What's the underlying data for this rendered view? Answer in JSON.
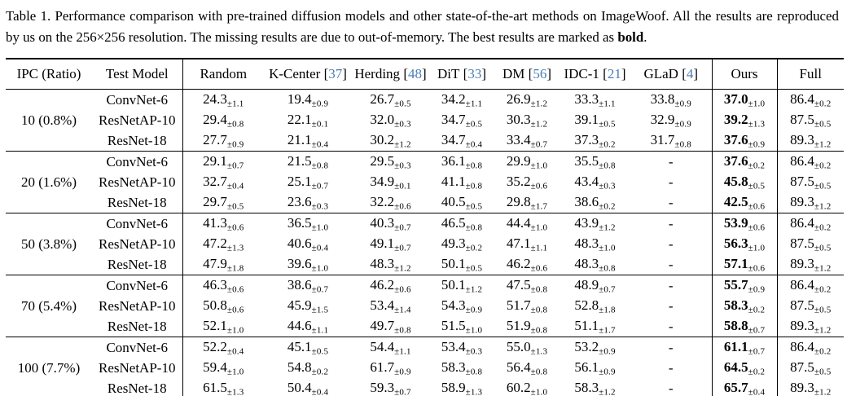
{
  "caption": {
    "text": "Table 1. Performance comparison with pre-trained diffusion models and other state-of-the-art methods on ImageWoof. All the results are reproduced by us on the 256×256 resolution. The missing results are due to out-of-memory. The best results are marked as ",
    "bold_word": "bold",
    "suffix": "."
  },
  "colors": {
    "citation_blue": "#4a7db6",
    "text": "#000000",
    "background": "#ffffff"
  },
  "table": {
    "columns": [
      {
        "label": "IPC (Ratio)"
      },
      {
        "label": "Test Model"
      },
      {
        "label": "Random"
      },
      {
        "label": "K-Center",
        "cite": "37"
      },
      {
        "label": "Herding",
        "cite": "48"
      },
      {
        "label": "DiT",
        "cite": "33"
      },
      {
        "label": "DM",
        "cite": "56"
      },
      {
        "label": "IDC-1",
        "cite": "21"
      },
      {
        "label": "GLaD",
        "cite": "4"
      },
      {
        "label": "Ours",
        "bold_values": true
      },
      {
        "label": "Full"
      }
    ],
    "groups": [
      {
        "ipc": "10 (0.8%)",
        "rows": [
          {
            "model": "ConvNet-6",
            "cells": [
              [
                "24.3",
                "1.1"
              ],
              [
                "19.4",
                "0.9"
              ],
              [
                "26.7",
                "0.5"
              ],
              [
                "34.2",
                "1.1"
              ],
              [
                "26.9",
                "1.2"
              ],
              [
                "33.3",
                "1.1"
              ],
              [
                "33.8",
                "0.9"
              ],
              [
                "37.0",
                "1.0"
              ],
              [
                "86.4",
                "0.2"
              ]
            ]
          },
          {
            "model": "ResNetAP-10",
            "cells": [
              [
                "29.4",
                "0.8"
              ],
              [
                "22.1",
                "0.1"
              ],
              [
                "32.0",
                "0.3"
              ],
              [
                "34.7",
                "0.5"
              ],
              [
                "30.3",
                "1.2"
              ],
              [
                "39.1",
                "0.5"
              ],
              [
                "32.9",
                "0.9"
              ],
              [
                "39.2",
                "1.3"
              ],
              [
                "87.5",
                "0.5"
              ]
            ]
          },
          {
            "model": "ResNet-18",
            "cells": [
              [
                "27.7",
                "0.9"
              ],
              [
                "21.1",
                "0.4"
              ],
              [
                "30.2",
                "1.2"
              ],
              [
                "34.7",
                "0.4"
              ],
              [
                "33.4",
                "0.7"
              ],
              [
                "37.3",
                "0.2"
              ],
              [
                "31.7",
                "0.8"
              ],
              [
                "37.6",
                "0.9"
              ],
              [
                "89.3",
                "1.2"
              ]
            ]
          }
        ]
      },
      {
        "ipc": "20 (1.6%)",
        "rows": [
          {
            "model": "ConvNet-6",
            "cells": [
              [
                "29.1",
                "0.7"
              ],
              [
                "21.5",
                "0.8"
              ],
              [
                "29.5",
                "0.3"
              ],
              [
                "36.1",
                "0.8"
              ],
              [
                "29.9",
                "1.0"
              ],
              [
                "35.5",
                "0.8"
              ],
              "-",
              [
                "37.6",
                "0.2"
              ],
              [
                "86.4",
                "0.2"
              ]
            ]
          },
          {
            "model": "ResNetAP-10",
            "cells": [
              [
                "32.7",
                "0.4"
              ],
              [
                "25.1",
                "0.7"
              ],
              [
                "34.9",
                "0.1"
              ],
              [
                "41.1",
                "0.8"
              ],
              [
                "35.2",
                "0.6"
              ],
              [
                "43.4",
                "0.3"
              ],
              "-",
              [
                "45.8",
                "0.5"
              ],
              [
                "87.5",
                "0.5"
              ]
            ]
          },
          {
            "model": "ResNet-18",
            "cells": [
              [
                "29.7",
                "0.5"
              ],
              [
                "23.6",
                "0.3"
              ],
              [
                "32.2",
                "0.6"
              ],
              [
                "40.5",
                "0.5"
              ],
              [
                "29.8",
                "1.7"
              ],
              [
                "38.6",
                "0.2"
              ],
              "-",
              [
                "42.5",
                "0.6"
              ],
              [
                "89.3",
                "1.2"
              ]
            ]
          }
        ]
      },
      {
        "ipc": "50 (3.8%)",
        "rows": [
          {
            "model": "ConvNet-6",
            "cells": [
              [
                "41.3",
                "0.6"
              ],
              [
                "36.5",
                "1.0"
              ],
              [
                "40.3",
                "0.7"
              ],
              [
                "46.5",
                "0.8"
              ],
              [
                "44.4",
                "1.0"
              ],
              [
                "43.9",
                "1.2"
              ],
              "-",
              [
                "53.9",
                "0.6"
              ],
              [
                "86.4",
                "0.2"
              ]
            ]
          },
          {
            "model": "ResNetAP-10",
            "cells": [
              [
                "47.2",
                "1.3"
              ],
              [
                "40.6",
                "0.4"
              ],
              [
                "49.1",
                "0.7"
              ],
              [
                "49.3",
                "0.2"
              ],
              [
                "47.1",
                "1.1"
              ],
              [
                "48.3",
                "1.0"
              ],
              "-",
              [
                "56.3",
                "1.0"
              ],
              [
                "87.5",
                "0.5"
              ]
            ]
          },
          {
            "model": "ResNet-18",
            "cells": [
              [
                "47.9",
                "1.8"
              ],
              [
                "39.6",
                "1.0"
              ],
              [
                "48.3",
                "1.2"
              ],
              [
                "50.1",
                "0.5"
              ],
              [
                "46.2",
                "0.6"
              ],
              [
                "48.3",
                "0.8"
              ],
              "-",
              [
                "57.1",
                "0.6"
              ],
              [
                "89.3",
                "1.2"
              ]
            ]
          }
        ]
      },
      {
        "ipc": "70 (5.4%)",
        "rows": [
          {
            "model": "ConvNet-6",
            "cells": [
              [
                "46.3",
                "0.6"
              ],
              [
                "38.6",
                "0.7"
              ],
              [
                "46.2",
                "0.6"
              ],
              [
                "50.1",
                "1.2"
              ],
              [
                "47.5",
                "0.8"
              ],
              [
                "48.9",
                "0.7"
              ],
              "-",
              [
                "55.7",
                "0.9"
              ],
              [
                "86.4",
                "0.2"
              ]
            ]
          },
          {
            "model": "ResNetAP-10",
            "cells": [
              [
                "50.8",
                "0.6"
              ],
              [
                "45.9",
                "1.5"
              ],
              [
                "53.4",
                "1.4"
              ],
              [
                "54.3",
                "0.9"
              ],
              [
                "51.7",
                "0.8"
              ],
              [
                "52.8",
                "1.8"
              ],
              "-",
              [
                "58.3",
                "0.2"
              ],
              [
                "87.5",
                "0.5"
              ]
            ]
          },
          {
            "model": "ResNet-18",
            "cells": [
              [
                "52.1",
                "1.0"
              ],
              [
                "44.6",
                "1.1"
              ],
              [
                "49.7",
                "0.8"
              ],
              [
                "51.5",
                "1.0"
              ],
              [
                "51.9",
                "0.8"
              ],
              [
                "51.1",
                "1.7"
              ],
              "-",
              [
                "58.8",
                "0.7"
              ],
              [
                "89.3",
                "1.2"
              ]
            ]
          }
        ]
      },
      {
        "ipc": "100 (7.7%)",
        "rows": [
          {
            "model": "ConvNet-6",
            "cells": [
              [
                "52.2",
                "0.4"
              ],
              [
                "45.1",
                "0.5"
              ],
              [
                "54.4",
                "1.1"
              ],
              [
                "53.4",
                "0.3"
              ],
              [
                "55.0",
                "1.3"
              ],
              [
                "53.2",
                "0.9"
              ],
              "-",
              [
                "61.1",
                "0.7"
              ],
              [
                "86.4",
                "0.2"
              ]
            ]
          },
          {
            "model": "ResNetAP-10",
            "cells": [
              [
                "59.4",
                "1.0"
              ],
              [
                "54.8",
                "0.2"
              ],
              [
                "61.7",
                "0.9"
              ],
              [
                "58.3",
                "0.8"
              ],
              [
                "56.4",
                "0.8"
              ],
              [
                "56.1",
                "0.9"
              ],
              "-",
              [
                "64.5",
                "0.2"
              ],
              [
                "87.5",
                "0.5"
              ]
            ]
          },
          {
            "model": "ResNet-18",
            "cells": [
              [
                "61.5",
                "1.3"
              ],
              [
                "50.4",
                "0.4"
              ],
              [
                "59.3",
                "0.7"
              ],
              [
                "58.9",
                "1.3"
              ],
              [
                "60.2",
                "1.0"
              ],
              [
                "58.3",
                "1.2"
              ],
              "-",
              [
                "65.7",
                "0.4"
              ],
              [
                "89.3",
                "1.2"
              ]
            ]
          }
        ]
      }
    ]
  }
}
